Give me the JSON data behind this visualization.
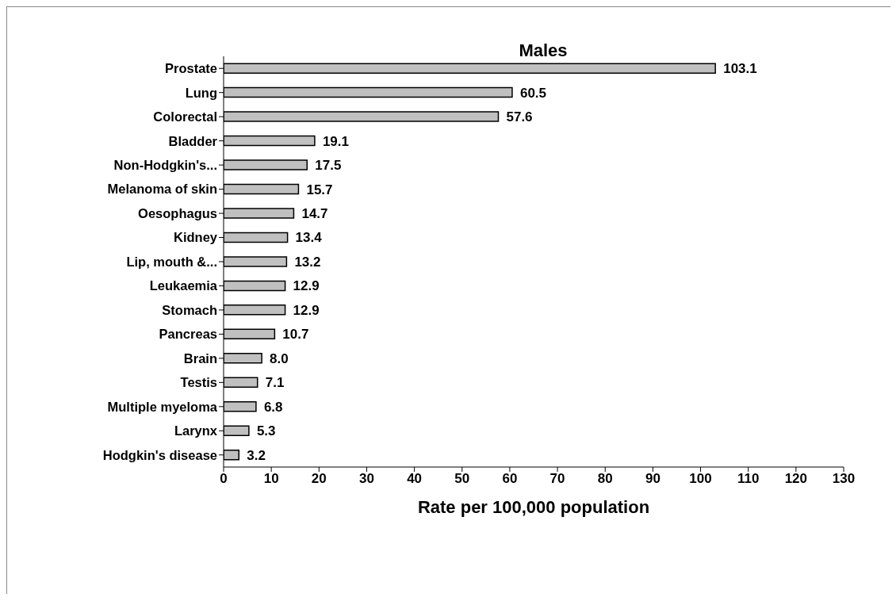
{
  "chart_data": {
    "type": "bar",
    "orientation": "horizontal",
    "title": "Males",
    "xlabel": "Rate per 100,000 population",
    "categories": [
      "Prostate",
      "Lung",
      "Colorectal",
      "Bladder",
      "Non-Hodgkin's...",
      "Melanoma of skin",
      "Oesophagus",
      "Kidney",
      "Lip, mouth &...",
      "Leukaemia",
      "Stomach",
      "Pancreas",
      "Brain",
      "Testis",
      "Multiple myeloma",
      "Larynx",
      "Hodgkin's disease"
    ],
    "values": [
      103.1,
      60.5,
      57.6,
      19.1,
      17.5,
      15.7,
      14.7,
      13.4,
      13.2,
      12.9,
      12.9,
      10.7,
      8.0,
      7.1,
      6.8,
      5.3,
      3.2
    ],
    "value_labels": [
      "103.1",
      "60.5",
      "57.6",
      "19.1",
      "17.5",
      "15.7",
      "14.7",
      "13.4",
      "13.2",
      "12.9",
      "12.9",
      "10.7",
      "8.0",
      "7.1",
      "6.8",
      "5.3",
      "3.2"
    ],
    "color": "#c0c0c0",
    "xlim": [
      0,
      130
    ],
    "xticks": [
      0,
      10,
      20,
      30,
      40,
      50,
      60,
      70,
      80,
      90,
      100,
      110,
      120,
      130
    ],
    "grid": false,
    "legend": false
  }
}
